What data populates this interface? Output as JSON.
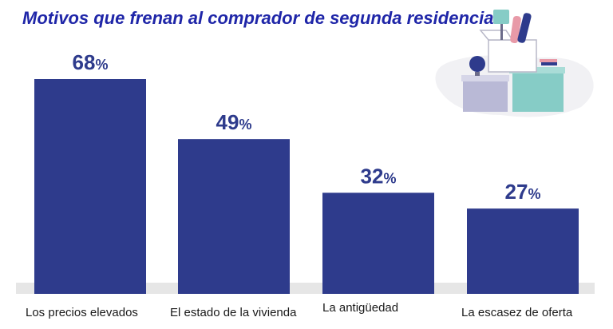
{
  "title": "Motivos que frenan al comprador de segunda residencia",
  "colors": {
    "bar": "#2e3b8c",
    "title": "#1f26a8",
    "baseline": "#e6e6e6",
    "label": "#1a1a1a"
  },
  "illustration": {
    "icon": "moving-boxes-illustration"
  },
  "chart_data": {
    "type": "bar",
    "title": "Motivos que frenan al comprador de segunda residencia",
    "categories": [
      "Los precios elevados",
      "El estado de la vivienda",
      "La antigüedad",
      "La escasez de oferta"
    ],
    "values": [
      68,
      49,
      32,
      27
    ],
    "value_labels": [
      "68",
      "49",
      "32",
      "27"
    ],
    "unit": "%",
    "ylim": [
      0,
      68
    ],
    "grid": false,
    "legend": "none"
  }
}
